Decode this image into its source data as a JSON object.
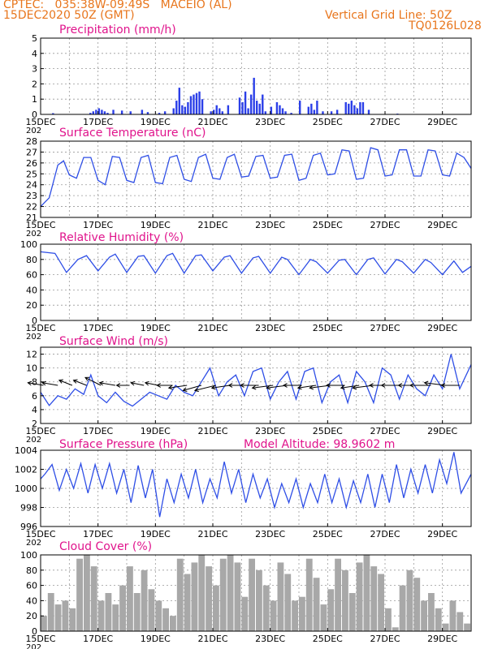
{
  "header": {
    "line1": "CPTEC:   035:38W-09:49S   MACEIO (AL)",
    "line2": "15DEC2020 50Z (GMT)",
    "right1": "Vertical Grid Line: 50Z",
    "right2": "TQ0126L028",
    "altitude": "Model Altitude: 98.9602 m"
  },
  "colors": {
    "header": "#e8761d",
    "title": "#e0148c",
    "line": "#2e4ee6",
    "bar": "#2b3fe8",
    "cloud": "#a8a8a8",
    "wind_arrow": "#000000"
  },
  "x_axis": {
    "labels": [
      "15DEC",
      "17DEC",
      "19DEC",
      "21DEC",
      "23DEC",
      "25DEC",
      "27DEC",
      "29DEC"
    ],
    "year_fragment": "202",
    "range_days": [
      0,
      15
    ]
  },
  "chart_data": [
    {
      "id": "precip",
      "type": "bar",
      "title": "Precipitation (mm/h)",
      "ylim": [
        0,
        5
      ],
      "yticks": [
        0,
        1,
        2,
        3,
        4,
        5
      ],
      "x_days": [
        0.4,
        1.7,
        1.8,
        1.9,
        2.0,
        2.1,
        2.2,
        2.3,
        2.5,
        2.8,
        3.1,
        3.5,
        3.7,
        4.1,
        4.3,
        4.6,
        4.7,
        4.8,
        4.9,
        5.0,
        5.1,
        5.2,
        5.3,
        5.4,
        5.5,
        5.6,
        5.9,
        6.0,
        6.1,
        6.2,
        6.3,
        6.5,
        6.9,
        7.0,
        7.1,
        7.2,
        7.3,
        7.4,
        7.5,
        7.6,
        7.7,
        7.8,
        8.0,
        8.2,
        8.3,
        8.4,
        8.5,
        8.7,
        9.0,
        9.3,
        9.4,
        9.5,
        9.6,
        9.8,
        10.1,
        10.3,
        10.6,
        10.7,
        10.8,
        10.9,
        11.0,
        11.1,
        11.2,
        11.4,
        12.4
      ],
      "values": [
        0.08,
        0.1,
        0.2,
        0.3,
        0.4,
        0.3,
        0.2,
        0.1,
        0.3,
        0.25,
        0.2,
        0.3,
        0.15,
        0.1,
        0.2,
        0.4,
        0.9,
        1.75,
        0.6,
        0.5,
        0.8,
        1.2,
        1.3,
        1.4,
        1.5,
        1.0,
        0.2,
        0.3,
        0.6,
        0.4,
        0.2,
        0.6,
        1.1,
        0.8,
        1.5,
        0.4,
        1.3,
        2.4,
        0.9,
        0.7,
        1.3,
        0.2,
        0.5,
        0.8,
        0.6,
        0.4,
        0.2,
        0.1,
        0.9,
        0.5,
        0.7,
        0.3,
        0.9,
        0.2,
        0.2,
        0.3,
        0.8,
        0.7,
        0.9,
        0.6,
        0.4,
        0.8,
        0.8,
        0.3,
        0.05
      ]
    },
    {
      "id": "temp",
      "type": "line",
      "title": "Surface Temperature (nC)",
      "ylim": [
        21,
        28
      ],
      "yticks": [
        21,
        22,
        23,
        24,
        25,
        26,
        27,
        28
      ],
      "x_days": [
        0.0,
        0.3,
        0.6,
        0.8,
        1.0,
        1.25,
        1.5,
        1.75,
        2.0,
        2.25,
        2.5,
        2.75,
        3.0,
        3.25,
        3.5,
        3.75,
        4.0,
        4.25,
        4.5,
        4.75,
        5.0,
        5.25,
        5.5,
        5.75,
        6.0,
        6.25,
        6.5,
        6.75,
        7.0,
        7.25,
        7.5,
        7.75,
        8.0,
        8.25,
        8.5,
        8.75,
        9.0,
        9.25,
        9.5,
        9.75,
        10.0,
        10.25,
        10.5,
        10.75,
        11.0,
        11.25,
        11.5,
        11.75,
        12.0,
        12.25,
        12.5,
        12.75,
        13.0,
        13.25,
        13.5,
        13.75,
        14.0,
        14.25,
        14.5,
        14.75,
        15.0
      ],
      "values": [
        22.0,
        22.8,
        25.8,
        26.2,
        24.9,
        24.6,
        26.5,
        26.5,
        24.4,
        24.0,
        26.6,
        26.5,
        24.4,
        24.2,
        26.5,
        26.7,
        24.2,
        24.1,
        26.5,
        26.7,
        24.5,
        24.3,
        26.5,
        26.8,
        24.6,
        24.5,
        26.5,
        26.8,
        24.7,
        24.8,
        26.6,
        26.7,
        24.6,
        24.7,
        26.7,
        26.8,
        24.4,
        24.6,
        26.7,
        26.9,
        24.9,
        25.0,
        27.2,
        27.1,
        24.5,
        24.6,
        27.4,
        27.2,
        24.8,
        24.9,
        27.2,
        27.2,
        24.8,
        24.8,
        27.2,
        27.1,
        24.9,
        24.8,
        26.9,
        26.5,
        25.5
      ]
    },
    {
      "id": "rh",
      "type": "line",
      "title": "Relative Humidity (%)",
      "ylim": [
        0,
        100
      ],
      "yticks": [
        0,
        20,
        40,
        60,
        80,
        100
      ],
      "x_days": [
        0.0,
        0.5,
        0.9,
        1.3,
        1.6,
        2.0,
        2.4,
        2.6,
        3.0,
        3.4,
        3.6,
        4.0,
        4.4,
        4.6,
        5.0,
        5.4,
        5.6,
        6.0,
        6.4,
        6.6,
        7.0,
        7.4,
        7.6,
        8.0,
        8.4,
        8.6,
        9.0,
        9.4,
        9.6,
        10.0,
        10.4,
        10.6,
        11.0,
        11.4,
        11.6,
        12.0,
        12.4,
        12.6,
        13.0,
        13.4,
        13.6,
        14.0,
        14.4,
        14.7,
        15.0
      ],
      "values": [
        90,
        88,
        63,
        80,
        85,
        65,
        83,
        87,
        63,
        84,
        85,
        62,
        85,
        88,
        62,
        85,
        86,
        65,
        83,
        85,
        62,
        82,
        84,
        62,
        83,
        80,
        60,
        80,
        77,
        62,
        79,
        80,
        60,
        80,
        82,
        61,
        80,
        77,
        62,
        80,
        76,
        60,
        78,
        63,
        71
      ]
    },
    {
      "id": "wind",
      "type": "line",
      "title": "Surface Wind (m/s)",
      "ylim": [
        2,
        13
      ],
      "yticks": [
        2,
        4,
        6,
        8,
        10,
        12
      ],
      "x_days": [
        0.0,
        0.3,
        0.6,
        0.9,
        1.2,
        1.5,
        1.75,
        2.0,
        2.3,
        2.6,
        2.9,
        3.2,
        3.5,
        3.8,
        4.1,
        4.4,
        4.7,
        5.0,
        5.3,
        5.6,
        5.9,
        6.2,
        6.5,
        6.8,
        7.1,
        7.4,
        7.7,
        8.0,
        8.3,
        8.6,
        8.9,
        9.2,
        9.5,
        9.8,
        10.1,
        10.4,
        10.7,
        11.0,
        11.3,
        11.6,
        11.9,
        12.2,
        12.5,
        12.8,
        13.1,
        13.4,
        13.7,
        14.0,
        14.3,
        14.6,
        15.0
      ],
      "values": [
        6.5,
        4.6,
        6.0,
        5.5,
        7.0,
        6.2,
        9.0,
        6.0,
        5.0,
        6.5,
        5.2,
        4.5,
        5.5,
        6.5,
        6.0,
        5.5,
        7.5,
        6.5,
        6.0,
        8.0,
        10.0,
        6.0,
        8.0,
        9.0,
        6.0,
        9.5,
        10.0,
        5.5,
        8.0,
        9.5,
        5.5,
        9.5,
        10.0,
        5.0,
        8.0,
        9.0,
        5.0,
        9.5,
        8.0,
        5.0,
        10.0,
        9.0,
        5.5,
        9.0,
        7.0,
        6.0,
        9.0,
        7.0,
        12.0,
        7.0,
        10.5
      ],
      "vectors": {
        "anchor_value": 7.5,
        "x_days": [
          0.1,
          0.6,
          1.1,
          1.6,
          2.1,
          2.6,
          3.1,
          3.6,
          4.1,
          4.6,
          5.1,
          5.6,
          6.1,
          6.6,
          7.1,
          7.6,
          8.1,
          8.6,
          9.1,
          9.6,
          10.1,
          10.6,
          11.1,
          11.6,
          12.1,
          12.6,
          13.1,
          13.6,
          14.1,
          14.6
        ],
        "u": [
          -6,
          -6,
          -5,
          -5,
          -6,
          -6,
          -5,
          -5,
          -5,
          -6,
          -7,
          -7,
          -8,
          -7,
          -6,
          -7,
          -8,
          -8,
          -7,
          -7,
          -8,
          -7,
          -7,
          -8,
          -7,
          -8,
          -7,
          -8,
          -8,
          -7
        ],
        "v": [
          1,
          1,
          2,
          2,
          3,
          1,
          0,
          1,
          1,
          0,
          -1,
          -2,
          -2,
          -1,
          0,
          0,
          -1,
          -1,
          0,
          -1,
          -1,
          0,
          -1,
          -1,
          0,
          0,
          0,
          0,
          1,
          0
        ]
      }
    },
    {
      "id": "pres",
      "type": "line",
      "title": "Surface Pressure (hPa)",
      "ylim": [
        996,
        1004
      ],
      "yticks": [
        996,
        998,
        1000,
        1002,
        1004
      ],
      "x_days": [
        0.0,
        0.15,
        0.4,
        0.65,
        0.9,
        1.15,
        1.4,
        1.65,
        1.9,
        2.15,
        2.4,
        2.65,
        2.9,
        3.15,
        3.4,
        3.65,
        3.9,
        4.15,
        4.4,
        4.65,
        4.9,
        5.15,
        5.4,
        5.65,
        5.9,
        6.15,
        6.4,
        6.65,
        6.9,
        7.15,
        7.4,
        7.65,
        7.9,
        8.15,
        8.4,
        8.65,
        8.9,
        9.15,
        9.4,
        9.65,
        9.9,
        10.15,
        10.4,
        10.65,
        10.9,
        11.15,
        11.4,
        11.65,
        11.9,
        12.15,
        12.4,
        12.65,
        12.9,
        13.15,
        13.4,
        13.65,
        13.9,
        14.15,
        14.4,
        14.65,
        15.0
      ],
      "values": [
        1001.0,
        1001.5,
        1002.5,
        999.8,
        1002.0,
        1000.0,
        1002.6,
        999.5,
        1002.5,
        1000.0,
        1002.6,
        999.5,
        1002.0,
        998.5,
        1002.4,
        999.0,
        1002.0,
        997.0,
        1001.0,
        998.5,
        1001.5,
        999.0,
        1002.0,
        998.5,
        1001.0,
        999.0,
        1002.8,
        999.5,
        1002.0,
        998.5,
        1001.5,
        999.0,
        1001.0,
        998.0,
        1000.5,
        998.5,
        1001.0,
        998.0,
        1000.5,
        998.5,
        1001.5,
        998.5,
        1001.0,
        998.0,
        1000.8,
        998.5,
        1001.5,
        998.0,
        1001.5,
        998.5,
        1002.5,
        999.0,
        1002.0,
        999.5,
        1002.5,
        999.5,
        1003.0,
        1000.5,
        1003.8,
        999.5,
        1001.5
      ]
    },
    {
      "id": "cloud",
      "type": "bar",
      "title": "Cloud Cover (%)",
      "ylim": [
        0,
        100
      ],
      "yticks": [
        0,
        20,
        40,
        60,
        80,
        100
      ],
      "x_days": [
        0.0,
        0.25,
        0.5,
        0.75,
        1.0,
        1.25,
        1.5,
        1.75,
        2.0,
        2.25,
        2.5,
        2.75,
        3.0,
        3.25,
        3.5,
        3.75,
        4.0,
        4.25,
        4.5,
        4.75,
        5.0,
        5.25,
        5.5,
        5.75,
        6.0,
        6.25,
        6.5,
        6.75,
        7.0,
        7.25,
        7.5,
        7.75,
        8.0,
        8.25,
        8.5,
        8.75,
        9.0,
        9.25,
        9.5,
        9.75,
        10.0,
        10.25,
        10.5,
        10.75,
        11.0,
        11.25,
        11.5,
        11.75,
        12.0,
        12.25,
        12.5,
        12.75,
        13.0,
        13.25,
        13.5,
        13.75,
        14.0,
        14.25,
        14.5,
        14.75
      ],
      "values": [
        20,
        50,
        35,
        40,
        30,
        95,
        100,
        85,
        40,
        50,
        35,
        60,
        85,
        50,
        80,
        55,
        40,
        30,
        20,
        95,
        75,
        90,
        100,
        85,
        60,
        95,
        100,
        90,
        45,
        95,
        80,
        60,
        40,
        90,
        75,
        40,
        45,
        95,
        70,
        35,
        55,
        95,
        80,
        50,
        90,
        100,
        85,
        75,
        30,
        5,
        60,
        80,
        70,
        40,
        50,
        30,
        10,
        40,
        25,
        10
      ]
    }
  ]
}
